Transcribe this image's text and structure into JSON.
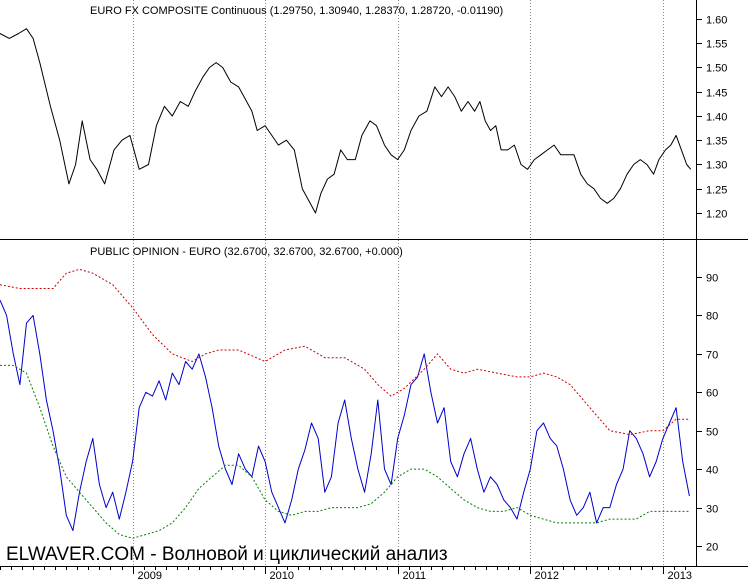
{
  "chart_data": [
    {
      "type": "line",
      "title": "EURO FX COMPOSITE Continuous (1.29750, 1.30940, 1.28370, 1.28720, -0.01190)",
      "x_labels": [
        "2009",
        "2010",
        "2011",
        "2012",
        "2013"
      ],
      "x_range": [
        2008.0,
        2013.25
      ],
      "ylim": [
        1.15,
        1.64
      ],
      "yticks": [
        1.2,
        1.25,
        1.3,
        1.35,
        1.4,
        1.45,
        1.5,
        1.55,
        1.6
      ],
      "grid": "vertical",
      "series": [
        {
          "color": "#000000",
          "x": [
            2008.0,
            2008.07,
            2008.14,
            2008.2,
            2008.25,
            2008.3,
            2008.38,
            2008.45,
            2008.52,
            2008.57,
            2008.62,
            2008.68,
            2008.73,
            2008.79,
            2008.86,
            2008.92,
            2008.98,
            2009.05,
            2009.12,
            2009.18,
            2009.24,
            2009.3,
            2009.36,
            2009.42,
            2009.47,
            2009.53,
            2009.58,
            2009.63,
            2009.68,
            2009.74,
            2009.8,
            2009.86,
            2009.9,
            2009.94,
            2010.0,
            2010.05,
            2010.1,
            2010.16,
            2010.22,
            2010.28,
            2010.34,
            2010.38,
            2010.42,
            2010.47,
            2010.52,
            2010.57,
            2010.62,
            2010.68,
            2010.73,
            2010.79,
            2010.84,
            2010.9,
            2010.95,
            2011.0,
            2011.05,
            2011.1,
            2011.16,
            2011.22,
            2011.28,
            2011.33,
            2011.38,
            2011.43,
            2011.48,
            2011.53,
            2011.58,
            2011.62,
            2011.66,
            2011.7,
            2011.74,
            2011.78,
            2011.83,
            2011.88,
            2011.93,
            2011.98,
            2012.03,
            2012.08,
            2012.13,
            2012.18,
            2012.23,
            2012.28,
            2012.33,
            2012.38,
            2012.43,
            2012.48,
            2012.53,
            2012.58,
            2012.63,
            2012.68,
            2012.73,
            2012.78,
            2012.83,
            2012.88,
            2012.93,
            2012.97,
            2013.02,
            2013.06,
            2013.1,
            2013.14,
            2013.18,
            2013.21
          ],
          "values": [
            1.57,
            1.56,
            1.57,
            1.58,
            1.56,
            1.51,
            1.42,
            1.35,
            1.26,
            1.3,
            1.39,
            1.31,
            1.29,
            1.26,
            1.33,
            1.35,
            1.36,
            1.29,
            1.3,
            1.38,
            1.42,
            1.4,
            1.43,
            1.42,
            1.45,
            1.48,
            1.5,
            1.51,
            1.5,
            1.47,
            1.46,
            1.43,
            1.41,
            1.37,
            1.38,
            1.36,
            1.34,
            1.35,
            1.33,
            1.25,
            1.22,
            1.2,
            1.24,
            1.27,
            1.28,
            1.33,
            1.31,
            1.31,
            1.36,
            1.39,
            1.38,
            1.34,
            1.32,
            1.31,
            1.33,
            1.37,
            1.4,
            1.41,
            1.46,
            1.44,
            1.46,
            1.44,
            1.41,
            1.43,
            1.41,
            1.43,
            1.39,
            1.37,
            1.38,
            1.33,
            1.33,
            1.34,
            1.3,
            1.29,
            1.31,
            1.32,
            1.33,
            1.34,
            1.32,
            1.32,
            1.32,
            1.28,
            1.26,
            1.25,
            1.23,
            1.22,
            1.23,
            1.25,
            1.28,
            1.3,
            1.31,
            1.3,
            1.28,
            1.31,
            1.33,
            1.34,
            1.36,
            1.33,
            1.3,
            1.29
          ]
        }
      ]
    },
    {
      "type": "line",
      "title": "PUBLIC OPINION - EURO (32.6700, 32.6700, 32.6700, +0.000)",
      "x_labels": [
        "2009",
        "2010",
        "2011",
        "2012",
        "2013"
      ],
      "x_range": [
        2008.0,
        2013.25
      ],
      "ylim": [
        17,
        98
      ],
      "yticks": [
        20,
        30,
        40,
        50,
        60,
        70,
        80,
        90
      ],
      "grid": "vertical",
      "series": [
        {
          "color": "#0000cc",
          "style": "solid",
          "x": [
            2008.0,
            2008.05,
            2008.1,
            2008.15,
            2008.2,
            2008.25,
            2008.3,
            2008.35,
            2008.4,
            2008.45,
            2008.5,
            2008.55,
            2008.6,
            2008.65,
            2008.7,
            2008.75,
            2008.8,
            2008.85,
            2008.9,
            2008.95,
            2009.0,
            2009.05,
            2009.1,
            2009.15,
            2009.2,
            2009.25,
            2009.3,
            2009.35,
            2009.4,
            2009.45,
            2009.5,
            2009.55,
            2009.6,
            2009.65,
            2009.7,
            2009.75,
            2009.8,
            2009.85,
            2009.9,
            2009.95,
            2010.0,
            2010.05,
            2010.1,
            2010.15,
            2010.2,
            2010.25,
            2010.3,
            2010.35,
            2010.4,
            2010.45,
            2010.5,
            2010.55,
            2010.6,
            2010.65,
            2010.7,
            2010.75,
            2010.8,
            2010.85,
            2010.9,
            2010.95,
            2011.0,
            2011.05,
            2011.1,
            2011.15,
            2011.2,
            2011.25,
            2011.3,
            2011.35,
            2011.4,
            2011.45,
            2011.5,
            2011.55,
            2011.6,
            2011.65,
            2011.7,
            2011.75,
            2011.8,
            2011.85,
            2011.9,
            2011.95,
            2012.0,
            2012.05,
            2012.1,
            2012.15,
            2012.2,
            2012.25,
            2012.3,
            2012.35,
            2012.4,
            2012.45,
            2012.5,
            2012.55,
            2012.6,
            2012.65,
            2012.7,
            2012.75,
            2012.8,
            2012.85,
            2012.9,
            2012.95,
            2013.0,
            2013.05,
            2013.1,
            2013.15,
            2013.2
          ],
          "values": [
            84,
            80,
            70,
            62,
            78,
            80,
            70,
            58,
            50,
            40,
            28,
            24,
            34,
            42,
            48,
            36,
            30,
            34,
            27,
            34,
            42,
            56,
            60,
            59,
            63,
            58,
            65,
            62,
            68,
            66,
            70,
            64,
            56,
            46,
            40,
            36,
            44,
            40,
            38,
            46,
            42,
            34,
            30,
            26,
            32,
            40,
            45,
            52,
            48,
            34,
            38,
            52,
            58,
            48,
            40,
            34,
            44,
            58,
            40,
            36,
            48,
            54,
            62,
            64,
            70,
            60,
            52,
            56,
            42,
            38,
            44,
            48,
            40,
            34,
            38,
            36,
            32,
            30,
            27,
            34,
            40,
            50,
            52,
            48,
            46,
            40,
            32,
            28,
            30,
            34,
            26,
            30,
            30,
            36,
            40,
            50,
            48,
            44,
            38,
            42,
            48,
            52,
            56,
            42,
            33
          ]
        },
        {
          "color": "#cc0000",
          "style": "dotted",
          "x": [
            2008.0,
            2008.15,
            2008.3,
            2008.4,
            2008.5,
            2008.6,
            2008.7,
            2008.85,
            2009.0,
            2009.15,
            2009.3,
            2009.45,
            2009.55,
            2009.65,
            2009.8,
            2010.0,
            2010.15,
            2010.3,
            2010.45,
            2010.6,
            2010.75,
            2010.85,
            2010.95,
            2011.05,
            2011.2,
            2011.3,
            2011.4,
            2011.5,
            2011.6,
            2011.75,
            2011.9,
            2012.0,
            2012.1,
            2012.2,
            2012.3,
            2012.45,
            2012.6,
            2012.75,
            2012.9,
            2013.0,
            2013.1,
            2013.2
          ],
          "values": [
            88,
            87,
            87,
            87,
            91,
            92,
            91,
            88,
            82,
            75,
            70,
            68,
            70,
            71,
            71,
            68,
            71,
            72,
            69,
            69,
            66,
            62,
            59,
            61,
            66,
            70,
            66,
            65,
            66,
            65,
            64,
            64,
            65,
            64,
            62,
            56,
            50,
            49,
            50,
            50,
            53,
            53
          ]
        },
        {
          "color": "#008000",
          "style": "dotted",
          "x": [
            2008.0,
            2008.1,
            2008.2,
            2008.3,
            2008.4,
            2008.5,
            2008.6,
            2008.7,
            2008.8,
            2008.9,
            2009.0,
            2009.1,
            2009.2,
            2009.3,
            2009.4,
            2009.5,
            2009.6,
            2009.7,
            2009.8,
            2009.9,
            2010.0,
            2010.1,
            2010.2,
            2010.3,
            2010.4,
            2010.5,
            2010.6,
            2010.7,
            2010.8,
            2010.9,
            2011.0,
            2011.1,
            2011.2,
            2011.3,
            2011.4,
            2011.5,
            2011.6,
            2011.7,
            2011.8,
            2011.9,
            2012.0,
            2012.1,
            2012.2,
            2012.3,
            2012.4,
            2012.5,
            2012.6,
            2012.7,
            2012.8,
            2012.9,
            2013.0,
            2013.1,
            2013.2
          ],
          "values": [
            67,
            67,
            65,
            56,
            46,
            38,
            34,
            30,
            26,
            23,
            22,
            23,
            24,
            26,
            30,
            35,
            38,
            41,
            41,
            38,
            32,
            29,
            28,
            29,
            29,
            30,
            30,
            30,
            31,
            34,
            38,
            40,
            40,
            38,
            35,
            32,
            30,
            29,
            29,
            30,
            28,
            27,
            26,
            26,
            26,
            26,
            27,
            27,
            27,
            29,
            29,
            29,
            29
          ]
        }
      ]
    }
  ],
  "watermark": "ELWAVER.COM - Волновой и циклический анализ"
}
